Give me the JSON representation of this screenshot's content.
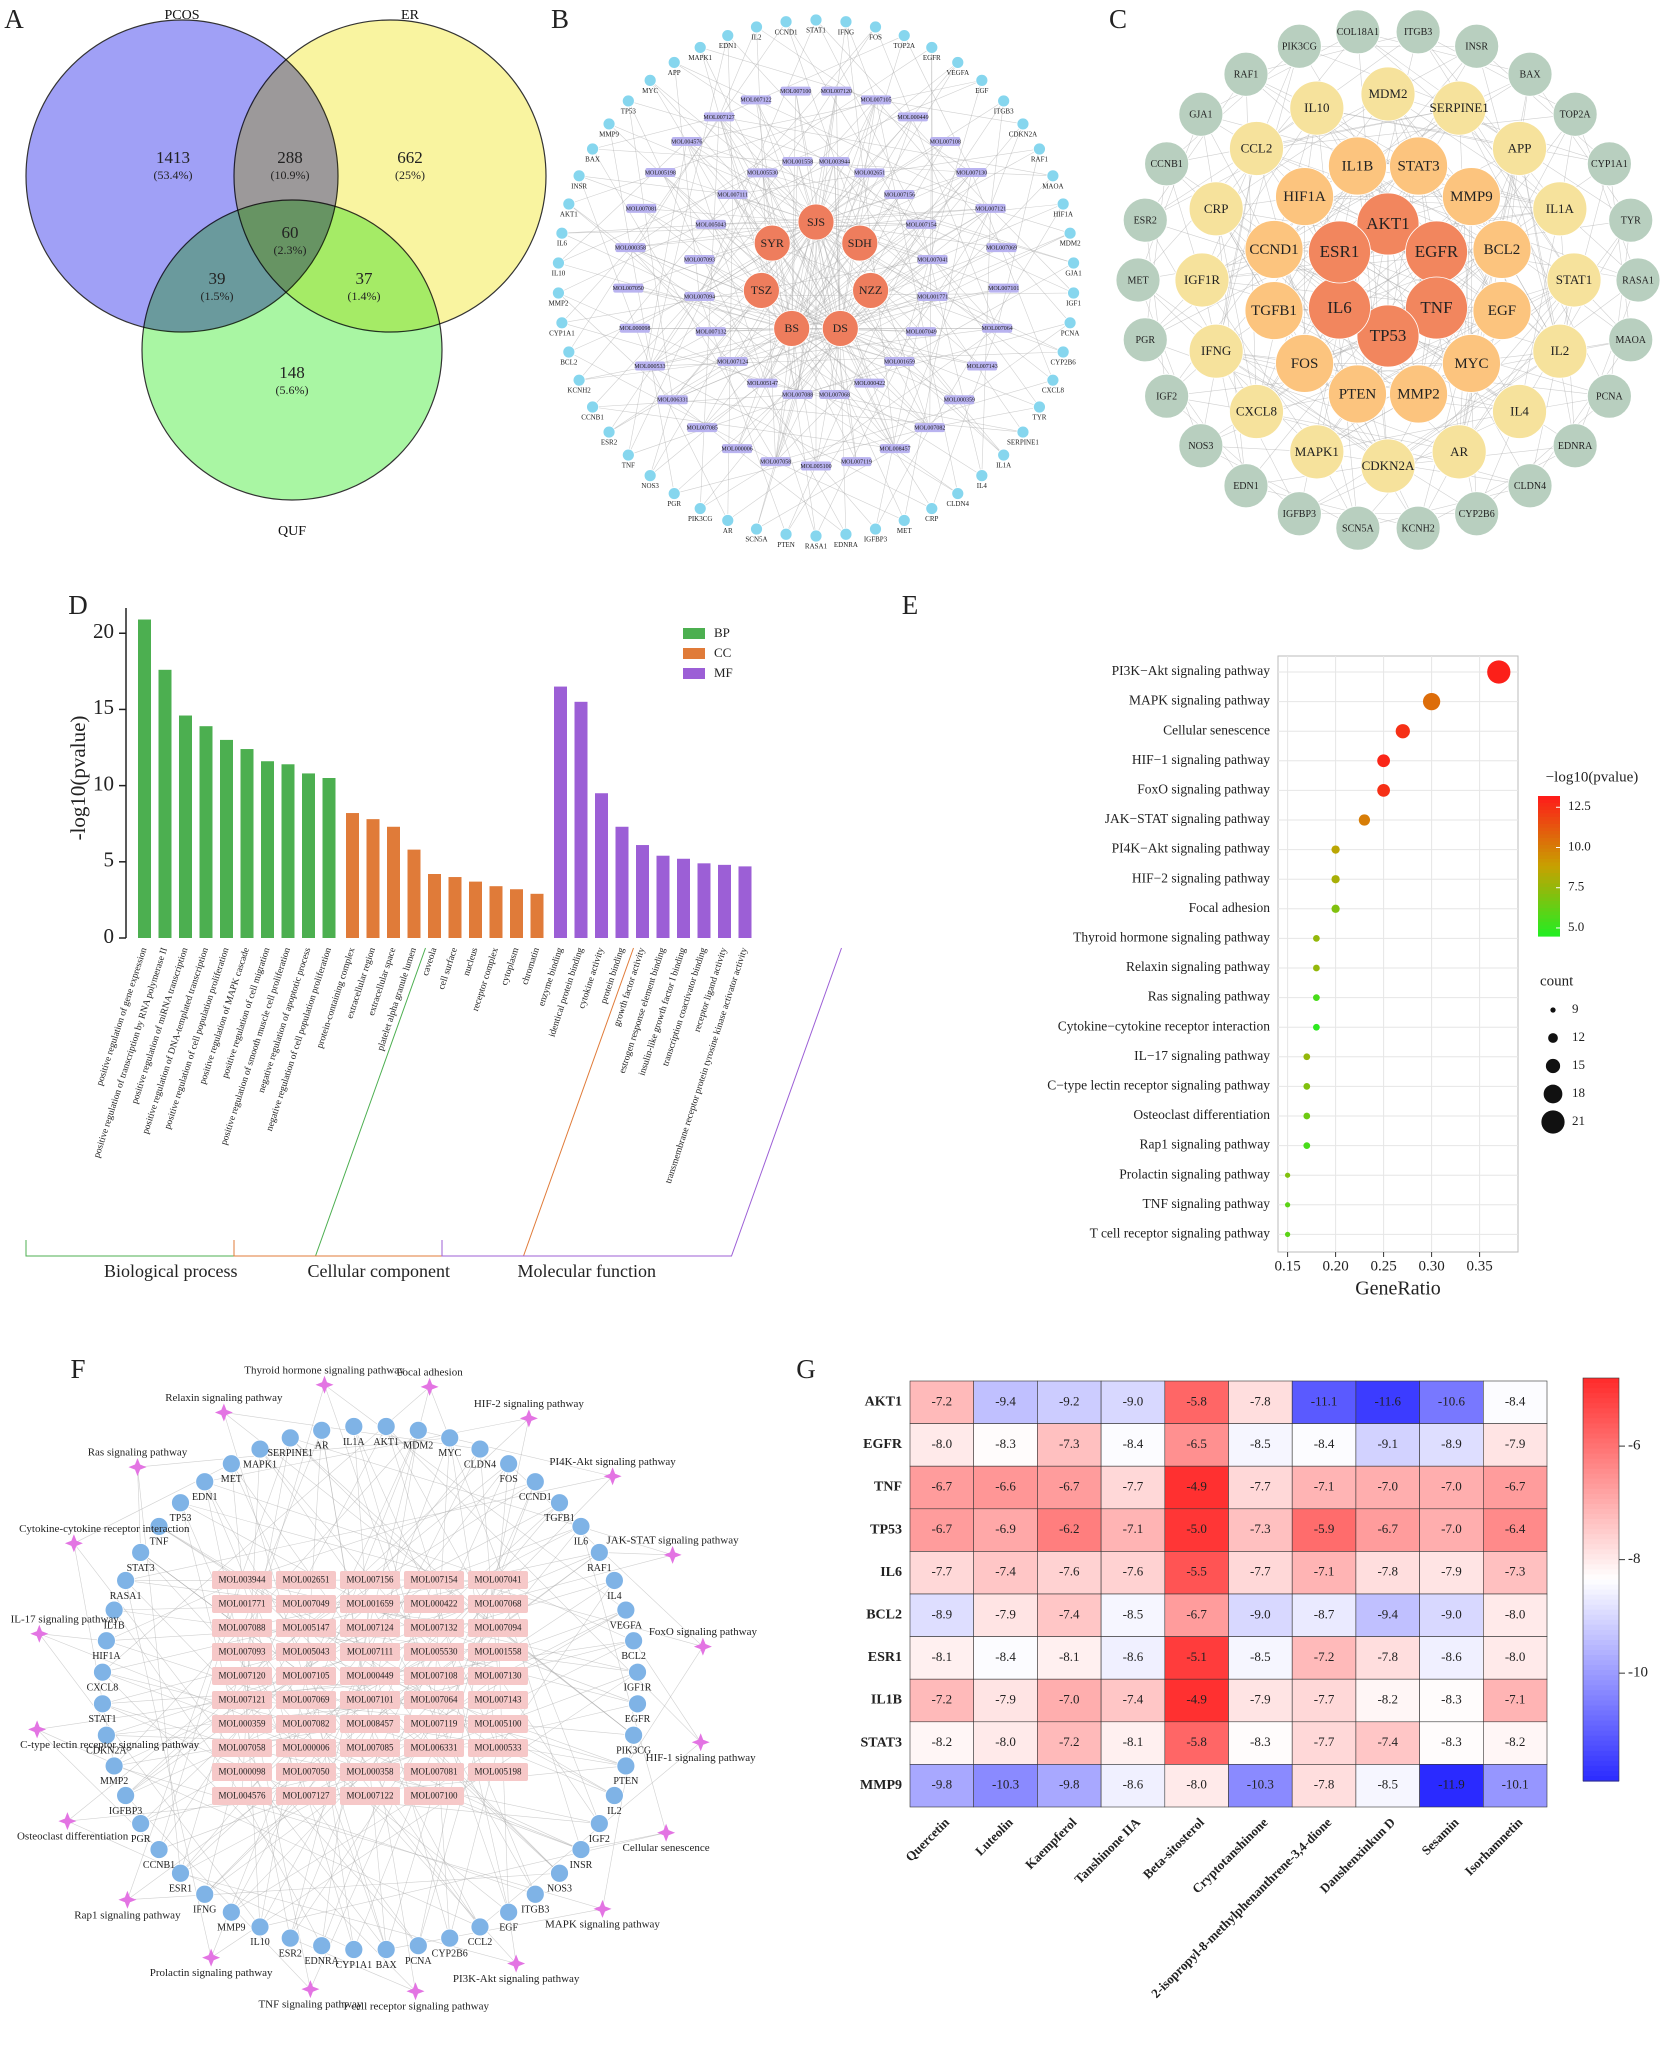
{
  "chart_data": [
    {
      "type": "venn",
      "panel": "A",
      "sets": [
        {
          "name": "PCOS",
          "color": "#7b7bf2"
        },
        {
          "name": "ER",
          "color": "#f6f07c"
        },
        {
          "name": "QUF",
          "color": "#88f27f"
        }
      ],
      "regions": [
        {
          "sets": [
            "PCOS"
          ],
          "value": 1413,
          "label": "(53.4%)"
        },
        {
          "sets": [
            "PCOS",
            "ER"
          ],
          "value": 288,
          "label": "(10.9%)"
        },
        {
          "sets": [
            "ER"
          ],
          "value": 662,
          "label": "(25%)"
        },
        {
          "sets": [
            "PCOS",
            "ER",
            "QUF"
          ],
          "value": 60,
          "label": "(2.3%)"
        },
        {
          "sets": [
            "PCOS",
            "QUF"
          ],
          "value": 39,
          "label": "(1.5%)"
        },
        {
          "sets": [
            "ER",
            "QUF"
          ],
          "value": 37,
          "label": "(1.4%)"
        },
        {
          "sets": [
            "QUF"
          ],
          "value": 148,
          "label": "(5.6%)"
        }
      ]
    },
    {
      "type": "network",
      "panel": "B",
      "groups": [
        {
          "shape": "circle",
          "color": "#ee7d5d",
          "nodes": [
            "SJS",
            "SDH",
            "NZZ",
            "DS",
            "BS",
            "TSZ",
            "SYR"
          ]
        },
        {
          "shape": "rect",
          "color": "#b9b3f0",
          "nodes": [
            "MOL003944",
            "MOL002651",
            "MOL007156",
            "MOL007154",
            "MOL007041",
            "MOL001771",
            "MOL007049",
            "MOL001659",
            "MOL000422",
            "MOL007068",
            "MOL007088",
            "MOL005147",
            "MOL007124",
            "MOL007132",
            "MOL007094",
            "MOL007093",
            "MOL005043",
            "MOL007111",
            "MOL005530",
            "MOL001558",
            "MOL007120",
            "MOL007105",
            "MOL000449",
            "MOL007108",
            "MOL007130",
            "MOL007121",
            "MOL007069",
            "MOL007101",
            "MOL007064",
            "MOL007143",
            "MOL000359",
            "MOL007082",
            "MOL008457",
            "MOL007119",
            "MOL005100",
            "MOL007058",
            "MOL000006",
            "MOL007085",
            "MOL006331",
            "MOL000533",
            "MOL000098",
            "MOL007050",
            "MOL000358",
            "MOL007081",
            "MOL005198",
            "MOL004576",
            "MOL007127",
            "MOL007122",
            "MOL007100"
          ]
        },
        {
          "shape": "circle",
          "color": "#86d6ee",
          "nodes": [
            "STAT1",
            "IFNG",
            "FOS",
            "TOP2A",
            "EGFR",
            "VEGFA",
            "EGF",
            "ITGB3",
            "CDKN2A",
            "RAF1",
            "MAOA",
            "HIF1A",
            "MDM2",
            "GJA1",
            "IGF1",
            "PCNA",
            "CYP2B6",
            "CXCL8",
            "TYR",
            "SERPINE1",
            "IL1A",
            "IL4",
            "CLDN4",
            "CRP",
            "MET",
            "IGFBP3",
            "EDNRA",
            "RASA1",
            "PTEN",
            "SCN5A",
            "AR",
            "PIK3CG",
            "PGR",
            "NOS3",
            "TNF",
            "ESR2",
            "CCNB1",
            "KCNH2",
            "BCL2",
            "CYP1A1",
            "MMP2",
            "IL10",
            "IL6",
            "AKT1",
            "INSR",
            "BAX",
            "MMP9",
            "TP53",
            "MYC",
            "APP",
            "MAPK1",
            "EDN1",
            "IL2",
            "CCND1"
          ]
        }
      ]
    },
    {
      "type": "network",
      "panel": "C",
      "groups": [
        {
          "shape": "circle",
          "color": "#f2865e",
          "nodes": [
            "AKT1",
            "EGFR",
            "TNF",
            "TP53",
            "IL6",
            "ESR1"
          ]
        },
        {
          "shape": "circle",
          "color": "#fcc47e",
          "nodes": [
            "STAT3",
            "MMP9",
            "BCL2",
            "EGF",
            "MYC",
            "MMP2",
            "PTEN",
            "FOS",
            "TGFB1",
            "CCND1",
            "HIF1A",
            "IL1B"
          ]
        },
        {
          "shape": "circle",
          "color": "#f6e29c",
          "nodes": [
            "MDM2",
            "SERPINE1",
            "APP",
            "IL1A",
            "STAT1",
            "IL2",
            "IL4",
            "AR",
            "CDKN2A",
            "MAPK1",
            "CXCL8",
            "IFNG",
            "IGF1R",
            "CRP",
            "CCL2",
            "IL10"
          ]
        },
        {
          "shape": "circle",
          "color": "#b8cfbf",
          "nodes": [
            "ITGB3",
            "INSR",
            "BAX",
            "TOP2A",
            "CYP1A1",
            "TYR",
            "RASA1",
            "MAOA",
            "PCNA",
            "EDNRA",
            "CLDN4",
            "CYP2B6",
            "KCNH2",
            "SCN5A",
            "IGFBP3",
            "EDN1",
            "NOS3",
            "IGF2",
            "PGR",
            "MET",
            "ESR2",
            "CCNB1",
            "GJA1",
            "RAF1",
            "PIK3CG",
            "COL18A1"
          ]
        }
      ]
    },
    {
      "type": "bar",
      "panel": "D",
      "ylabel": "-log10(pvalue)",
      "ylim": [
        0,
        21
      ],
      "yticks": [
        0,
        5,
        10,
        15,
        20
      ],
      "series": [
        {
          "name": "BP",
          "group_label": "Biological process",
          "color": "#4caf50",
          "categories": [
            "positive regulation of gene expression",
            "positive regulation of transcription by RNA polymerase II",
            "positive regulation of miRNA transcription",
            "positive regulation of DNA-templated transcription",
            "positive regulation of cell population proliferation",
            "positive regulation of MAPK cascade",
            "positive regulation of cell migration",
            "positive regulation of smooth muscle cell proliferation",
            "negative regulation of apoptotic process",
            "negative regulation of cell population proliferation"
          ],
          "values": [
            20.9,
            17.6,
            14.6,
            13.9,
            13.0,
            12.4,
            11.6,
            11.4,
            10.8,
            10.5
          ]
        },
        {
          "name": "CC",
          "group_label": "Cellular component",
          "color": "#e07b39",
          "categories": [
            "protein-containing complex",
            "extracellular region",
            "extracellular space",
            "platelet alpha granule lumen",
            "caveola",
            "cell surface",
            "nucleus",
            "receptor complex",
            "cytoplasm",
            "chromatin"
          ],
          "values": [
            8.2,
            7.8,
            7.3,
            5.8,
            4.2,
            4.0,
            3.7,
            3.4,
            3.2,
            2.9
          ]
        },
        {
          "name": "MF",
          "group_label": "Molecular function",
          "color": "#9c5fd6",
          "categories": [
            "enzyme binding",
            "identical protein binding",
            "cytokine activity",
            "protein binding",
            "growth factor activity",
            "estrogen response element binding",
            "insulin-like growth factor I binding",
            "transcription coactivator binding",
            "receptor ligand activity",
            "transmembrane receptor protein tyrosine kinase activator activity"
          ],
          "values": [
            16.5,
            15.5,
            9.5,
            7.3,
            6.1,
            5.4,
            5.2,
            4.9,
            4.8,
            4.7
          ]
        }
      ]
    },
    {
      "type": "dot",
      "panel": "E",
      "xlabel": "GeneRatio",
      "categories": [
        "PI3K−Akt signaling pathway",
        "MAPK signaling pathway",
        "Cellular senescence",
        "HIF−1 signaling pathway",
        "FoxO signaling pathway",
        "JAK−STAT signaling pathway",
        "PI4K−Akt signaling pathway",
        "HIF−2 signaling pathway",
        "Focal adhesion",
        "Thyroid hormone signaling pathway",
        "Relaxin signaling pathway",
        "Ras signaling pathway",
        "Cytokine−cytokine receptor interaction",
        "IL−17 signaling pathway",
        "C−type lectin receptor signaling pathway",
        "Osteoclast differentiation",
        "Rap1 signaling pathway",
        "Prolactin signaling pathway",
        "TNF signaling pathway",
        "T cell receptor signaling pathway"
      ],
      "x": [
        0.37,
        0.3,
        0.27,
        0.25,
        0.25,
        0.23,
        0.2,
        0.2,
        0.2,
        0.18,
        0.18,
        0.18,
        0.18,
        0.17,
        0.17,
        0.17,
        0.17,
        0.15,
        0.15,
        0.15
      ],
      "size": [
        21,
        17,
        15,
        14,
        14,
        13,
        11,
        11,
        11,
        10,
        10,
        10,
        10,
        10,
        10,
        10,
        10,
        9,
        9,
        9
      ],
      "color_values": [
        13.0,
        10.5,
        12.5,
        12.8,
        12.5,
        10.0,
        8.5,
        8.0,
        7.0,
        7.5,
        7.5,
        5.5,
        4.8,
        7.5,
        7.0,
        6.5,
        5.5,
        7.0,
        6.0,
        6.0
      ],
      "xlim": [
        0.14,
        0.39
      ],
      "xticks": [
        0.15,
        {
          "value": 0.2,
          "label": "0.20"
        },
        0.25,
        {
          "value": 0.3,
          "label": "0.30"
        },
        0.35
      ],
      "grid": true,
      "colorbar_title": "−log10(pvalue)",
      "clim": [
        4.5,
        13.2
      ],
      "cticks": [
        {
          "value": 5,
          "label": "5.0"
        },
        7.5,
        {
          "value": 10,
          "label": "10.0"
        },
        12.5
      ],
      "colors": [
        "#22ee22",
        "#c8a000",
        "#ff1a1a"
      ],
      "size_title": "count",
      "size_ticks": [
        9,
        12,
        15,
        18,
        21
      ]
    },
    {
      "type": "network",
      "panel": "F",
      "groups": [
        {
          "shape": "rect",
          "color": "#f6c8c8",
          "nodes": [
            "MOL003944",
            "MOL002651",
            "MOL007156",
            "MOL007154",
            "MOL007041",
            "MOL001771",
            "MOL007049",
            "MOL001659",
            "MOL000422",
            "MOL007068",
            "MOL007088",
            "MOL005147",
            "MOL007124",
            "MOL007132",
            "MOL007094",
            "MOL007093",
            "MOL005043",
            "MOL007111",
            "MOL005530",
            "MOL001558",
            "MOL007120",
            "MOL007105",
            "MOL000449",
            "MOL007108",
            "MOL007130",
            "MOL007121",
            "MOL007069",
            "MOL007101",
            "MOL007064",
            "MOL007143",
            "MOL000359",
            "MOL007082",
            "MOL008457",
            "MOL007119",
            "MOL005100",
            "MOL007058",
            "MOL000006",
            "MOL007085",
            "MOL006331",
            "MOL000533",
            "MOL000098",
            "MOL007050",
            "MOL000358",
            "MOL007081",
            "MOL005198",
            "MOL004576",
            "MOL007127",
            "MOL007122",
            "MOL007100"
          ]
        },
        {
          "shape": "circle",
          "color": "#7fb3e6",
          "nodes": [
            "AKT1",
            "MDM2",
            "MYC",
            "CLDN4",
            "FOS",
            "CCND1",
            "TGFB1",
            "IL6",
            "RAF1",
            "IL4",
            "VEGFA",
            "BCL2",
            "IGF1R",
            "EGFR",
            "PIK3CG",
            "PTEN",
            "IL2",
            "IGF2",
            "INSR",
            "NOS3",
            "ITGB3",
            "EGF",
            "CCL2",
            "CYP2B6",
            "PCNA",
            "BAX",
            "CYP1A1",
            "EDNRA",
            "ESR2",
            "IL10",
            "MMP9",
            "IFNG",
            "ESR1",
            "CCNB1",
            "PGR",
            "IGFBP3",
            "MMP2",
            "CDKN2A",
            "STAT1",
            "CXCL8",
            "HIF1A",
            "IL1B",
            "RASA1",
            "STAT3",
            "TNF",
            "TP53",
            "EDN1",
            "MET",
            "MAPK1",
            "SERPINE1",
            "AR",
            "IL1A"
          ]
        },
        {
          "shape": "star",
          "color": "#e374e3",
          "nodes": [
            "Relaxin signaling pathway",
            "Thyroid hormone signaling pathway",
            "Focal adhesion",
            "HIF-2 signaling pathway",
            "PI4K-Akt signaling pathway",
            "JAK-STAT signaling pathway",
            "FoxO signaling pathway",
            "HIF-1 signaling pathway",
            "Cellular senescence",
            "MAPK signaling pathway",
            "PI3K-Akt signaling pathway",
            "T cell receptor signaling pathway",
            "TNF signaling pathway",
            "Prolactin signaling pathway",
            "Rap1 signaling pathway",
            "Osteoclast differentiation",
            "C-type lectin receptor signaling pathway",
            "IL-17 signaling pathway",
            "Cytokine-cytokine receptor interaction",
            "Ras signaling pathway"
          ]
        }
      ]
    },
    {
      "type": "heatmap",
      "panel": "G",
      "rows": [
        "AKT1",
        "EGFR",
        "TNF",
        "TP53",
        "IL6",
        "BCL2",
        "ESR1",
        "IL1B",
        "STAT3",
        "MMP9"
      ],
      "columns": [
        "Quercetin",
        "Luteolin",
        "Kaempferol",
        "Tanshinone IIA",
        "Beta-sitosterol",
        "Cryptotanshinone",
        "2-isopropyl-8-methylphenanthrene-3,4-dione",
        "Danshenxinkun D",
        "Sesamin",
        "Isorhamnetin"
      ],
      "values": [
        [
          -7.2,
          -9.4,
          -9.2,
          -9.0,
          -5.8,
          -7.8,
          -11.1,
          -11.6,
          -10.6,
          -8.4
        ],
        [
          -8.0,
          -8.3,
          -7.3,
          -8.4,
          -6.5,
          -8.5,
          -8.4,
          -9.1,
          -8.9,
          -7.9
        ],
        [
          -6.7,
          -6.6,
          -6.7,
          -7.7,
          -4.9,
          -7.7,
          -7.1,
          -7.0,
          -7.0,
          -6.7
        ],
        [
          -6.7,
          -6.9,
          -6.2,
          -7.1,
          -5.0,
          -7.3,
          -5.9,
          -6.7,
          -7.0,
          -6.4
        ],
        [
          -7.7,
          -7.4,
          -7.6,
          -7.6,
          -5.5,
          -7.7,
          -7.1,
          -7.8,
          -7.9,
          -7.3
        ],
        [
          -8.9,
          -7.9,
          -7.4,
          -8.5,
          -6.7,
          -9.0,
          -8.7,
          -9.4,
          -9.0,
          -8.0
        ],
        [
          -8.1,
          -8.4,
          -8.1,
          -8.6,
          -5.1,
          -8.5,
          -7.2,
          -7.8,
          -8.6,
          -8.0
        ],
        [
          -7.2,
          -7.9,
          -7.0,
          -7.4,
          -4.9,
          -7.9,
          -7.7,
          -8.2,
          -8.3,
          -7.1
        ],
        [
          -8.2,
          -8.0,
          -7.2,
          -8.1,
          -5.8,
          -8.3,
          -7.7,
          -7.4,
          -8.3,
          -8.2
        ],
        [
          -9.8,
          -10.3,
          -9.8,
          -8.6,
          -8.0,
          -10.3,
          -7.8,
          -8.5,
          -11.9,
          -10.1
        ]
      ],
      "value_labels": [
        [
          "-7.2",
          "-9.4",
          "-9.2",
          "-9.0",
          "-5.8",
          "-7.8",
          "-11.1",
          "-11.6",
          "-10.6",
          "-8.4"
        ],
        [
          "-8.0",
          "-8.3",
          "-7.3",
          "-8.4",
          "-6.5",
          "-8.5",
          "-8.4",
          "-9.1",
          "-8.9",
          "-7.9"
        ],
        [
          "-6.7",
          "-6.6",
          "-6.7",
          "-7.7",
          "-4.9",
          "-7.7",
          "-7.1",
          "-7.0",
          "-7.0",
          "-6.7"
        ],
        [
          "-6.7",
          "-6.9",
          "-6.2",
          "-7.1",
          "-5.0",
          "-7.3",
          "-5.9",
          "-6.7",
          "-7.0",
          "-6.4"
        ],
        [
          "-7.7",
          "-7.4",
          "-7.6",
          "-7.6",
          "-5.5",
          "-7.7",
          "-7.1",
          "-7.8",
          "-7.9",
          "-7.3"
        ],
        [
          "-8.9",
          "-7.9",
          "-7.4",
          "-8.5",
          "-6.7",
          "-9.0",
          "-8.7",
          "-9.4",
          "-9.0",
          "-8.0"
        ],
        [
          "-8.1",
          "-8.4",
          "-8.1",
          "-8.6",
          "-5.1",
          "-8.5",
          "-7.2",
          "-7.8",
          "-8.6",
          "-8.0"
        ],
        [
          "-7.2",
          "-7.9",
          "-7.0",
          "-7.4",
          "-4.9",
          "-7.9",
          "-7.7",
          "-8.2",
          "-8.3",
          "-7.1"
        ],
        [
          "-8.2",
          "-8.0",
          "-7.2",
          "-8.1",
          "-5.8",
          "-8.3",
          "-7.7",
          "-7.4",
          "-8.3",
          "-8.2"
        ],
        [
          "-9.8",
          "-10.3",
          "-9.8",
          "-8.6",
          "-8.0",
          "-10.3",
          "-7.8",
          "-8.5",
          "-11.9",
          "-10.1"
        ]
      ],
      "clim": [
        -11.9,
        -4.8
      ],
      "cticks": [
        -6,
        -8,
        -10
      ],
      "colors": [
        "#2a2aff",
        "#ffffff",
        "#ff2a2a"
      ]
    }
  ]
}
